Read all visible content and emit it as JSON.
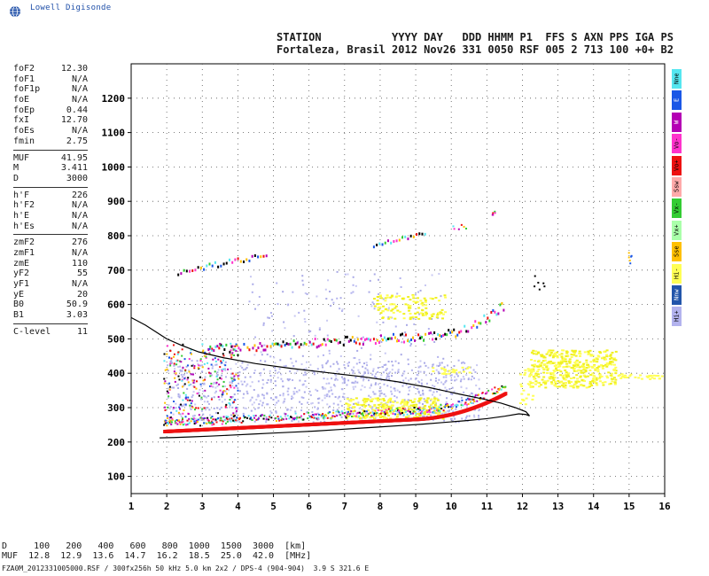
{
  "app": {
    "logo_text": "Lowell Digisonde"
  },
  "header": {
    "line1": "STATION           YYYY DAY   DDD HHMM P1  FFS S AXN PPS IGA PS",
    "line2": "Fortaleza, Brasil 2012 Nov26 331 0050 RSF 005 2 713 100 +0+ B2"
  },
  "params": [
    {
      "group": [
        {
          "k": "foF2",
          "v": "12.30"
        },
        {
          "k": "foF1",
          "v": "N/A"
        },
        {
          "k": "foF1p",
          "v": "N/A"
        },
        {
          "k": "foE",
          "v": "N/A"
        },
        {
          "k": "foEp",
          "v": "0.44"
        },
        {
          "k": "fxI",
          "v": "12.70"
        },
        {
          "k": "foEs",
          "v": "N/A"
        },
        {
          "k": "fmin",
          "v": "2.75"
        }
      ]
    },
    {
      "group": [
        {
          "k": "MUF",
          "v": "41.95"
        },
        {
          "k": "M",
          "v": "3.411"
        },
        {
          "k": "D",
          "v": "3000"
        }
      ]
    },
    {
      "group": [
        {
          "k": "h'F",
          "v": "226"
        },
        {
          "k": "h'F2",
          "v": "N/A"
        },
        {
          "k": "h'E",
          "v": "N/A"
        },
        {
          "k": "h'Es",
          "v": "N/A"
        }
      ]
    },
    {
      "group": [
        {
          "k": "zmF2",
          "v": "276"
        },
        {
          "k": "zmF1",
          "v": "N/A"
        },
        {
          "k": "zmE",
          "v": "110"
        },
        {
          "k": "yF2",
          "v": "55"
        },
        {
          "k": "yF1",
          "v": "N/A"
        },
        {
          "k": "yE",
          "v": "20"
        },
        {
          "k": "B0",
          "v": "50.9"
        },
        {
          "k": "B1",
          "v": "3.03"
        }
      ]
    },
    {
      "group": [
        {
          "k": "C-level",
          "v": "11"
        }
      ]
    }
  ],
  "legend": [
    {
      "label": "Nne",
      "color": "#55e6f0"
    },
    {
      "label": "E",
      "color": "#1a57e6"
    },
    {
      "label": "W",
      "color": "#b400b4"
    },
    {
      "label": "Vo-",
      "color": "#ff33cc"
    },
    {
      "label": "Vo+",
      "color": "#ee1111"
    },
    {
      "label": "Ssw",
      "color": "#ffaaaa"
    },
    {
      "label": "Vx-",
      "color": "#33cc33"
    },
    {
      "label": "Vx+",
      "color": "#aaffaa"
    },
    {
      "label": "Sse",
      "color": "#ffc000"
    },
    {
      "label": "Hi-",
      "color": "#ffff55"
    },
    {
      "label": "Nnw",
      "color": "#2255aa"
    },
    {
      "label": "Hi+",
      "color": "#b3b3ee"
    }
  ],
  "muf_table": {
    "line1": "D     100   200   400   600   800  1000  1500  3000  [km]",
    "line2": "MUF  12.8  12.9  13.6  14.7  16.2  18.5  25.0  42.0  [MHz]"
  },
  "footer": "FZA0M_2012331005000.RSF / 300fx256h 50 kHz 5.0 km 2x2 / DPS-4 (904-904)  3.9 S 321.6 E",
  "chart_data": {
    "type": "scatter",
    "xlim": [
      1,
      16
    ],
    "ylim": [
      50,
      1300
    ],
    "x_ticks": [
      1,
      2,
      3,
      4,
      5,
      6,
      7,
      8,
      9,
      10,
      11,
      12,
      13,
      14,
      15,
      16
    ],
    "y_ticks": [
      100,
      200,
      300,
      400,
      500,
      600,
      700,
      800,
      900,
      1000,
      1100,
      1200
    ],
    "grid": "dotted",
    "trace": {
      "x": [
        1.8,
        2.2,
        2.7,
        3.2,
        3.8,
        4.4,
        5.0,
        5.6,
        6.2,
        6.8,
        7.4,
        8.0,
        8.6,
        9.2,
        9.8,
        10.4,
        11.0,
        11.5,
        11.9,
        12.1,
        12.2,
        12.1,
        11.8,
        11.4,
        10.9,
        10.2,
        9.4,
        8.5,
        7.5,
        6.5,
        5.5,
        4.5,
        3.6,
        2.9,
        2.4,
        2.0,
        1.7,
        1.4,
        1.0
      ],
      "y": [
        212,
        213,
        215,
        217,
        220,
        223,
        226,
        229,
        232,
        236,
        240,
        244,
        248,
        252,
        257,
        262,
        268,
        275,
        282,
        280,
        276,
        288,
        300,
        313,
        325,
        340,
        358,
        375,
        390,
        402,
        414,
        428,
        445,
        462,
        482,
        500,
        520,
        540,
        562
      ]
    }
  }
}
